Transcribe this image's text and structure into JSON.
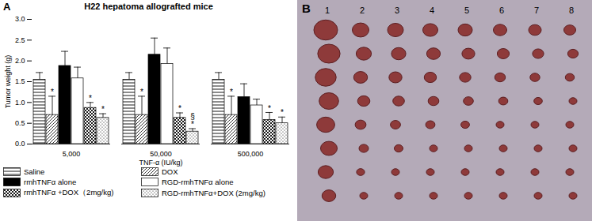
{
  "chart_data": {
    "type": "bar",
    "panel_label": "A",
    "title": "H22 hepatoma allografted mice",
    "x_label": "TNF-α (IU/kg)",
    "y_label": "Tumor weight (g)",
    "categories": [
      "5,000",
      "50,000",
      "500,000"
    ],
    "series": [
      {
        "name": "Saline",
        "color": "#000000",
        "marker": "horizontal",
        "values": [
          1.55,
          1.55,
          1.55
        ],
        "errors": [
          0.17,
          0.17,
          0.17
        ]
      },
      {
        "name": "DOX",
        "color": "#000000",
        "marker": "diagonal",
        "values": [
          0.7,
          0.7,
          0.7
        ],
        "errors": [
          0.45,
          0.45,
          0.45
        ]
      },
      {
        "name": "rmhTNFα alone",
        "color": "#000000",
        "marker": "solid",
        "values": [
          1.88,
          2.15,
          1.13
        ],
        "errors": [
          0.35,
          0.4,
          0.32
        ]
      },
      {
        "name": "RGD-rmhTNFα  alone",
        "color": "#000000",
        "marker": "none",
        "values": [
          1.58,
          1.93,
          0.93
        ],
        "errors": [
          0.27,
          0.38,
          0.15
        ]
      },
      {
        "name": "rmhTNFα +DOX（2mg/kg)",
        "color": "#000000",
        "marker": "crosshatch",
        "values": [
          0.87,
          0.63,
          0.58
        ],
        "errors": [
          0.13,
          0.12,
          0.18
        ]
      },
      {
        "name": "RGD-rmhTNFα+DOX (2mg/kg)",
        "color": "#000000",
        "marker": "dots",
        "values": [
          0.63,
          0.3,
          0.5
        ],
        "errors": [
          0.1,
          0.07,
          0.15
        ]
      }
    ],
    "annotations": [
      {
        "category": "5,000",
        "series": "DOX",
        "text": "*"
      },
      {
        "category": "5,000",
        "series": "rmhTNFα +DOX（2mg/kg)",
        "text": "*"
      },
      {
        "category": "5,000",
        "series": "RGD-rmhTNFα+DOX (2mg/kg)",
        "text": "*"
      },
      {
        "category": "50,000",
        "series": "DOX",
        "text": "*"
      },
      {
        "category": "50,000",
        "series": "rmhTNFα +DOX（2mg/kg)",
        "text": "*"
      },
      {
        "category": "50,000",
        "series": "RGD-rmhTNFα+DOX (2mg/kg)",
        "text": "*"
      },
      {
        "category": "50,000",
        "series": "RGD-rmhTNFα+DOX (2mg/kg)",
        "text": "§"
      },
      {
        "category": "500,000",
        "series": "DOX",
        "text": "*"
      },
      {
        "category": "500,000",
        "series": "rmhTNFα +DOX（2mg/kg)",
        "text": "*"
      },
      {
        "category": "500,000",
        "series": "RGD-rmhTNFα+DOX (2mg/kg)",
        "text": "*"
      }
    ],
    "ylim": [
      0,
      3
    ],
    "yticks": [
      {
        "value": 0,
        "label": "0.0"
      },
      0.5,
      {
        "value": 1,
        "label": "1.0"
      },
      1.5,
      {
        "value": 2,
        "label": "2.0"
      },
      2.5,
      {
        "value": 3,
        "label": "3.0"
      }
    ],
    "grid": false,
    "legend": "bottom"
  },
  "panel_b": {
    "label": "B",
    "lane_labels": [
      "1",
      "2",
      "3",
      "4",
      "5",
      "6",
      "7",
      "8"
    ]
  }
}
